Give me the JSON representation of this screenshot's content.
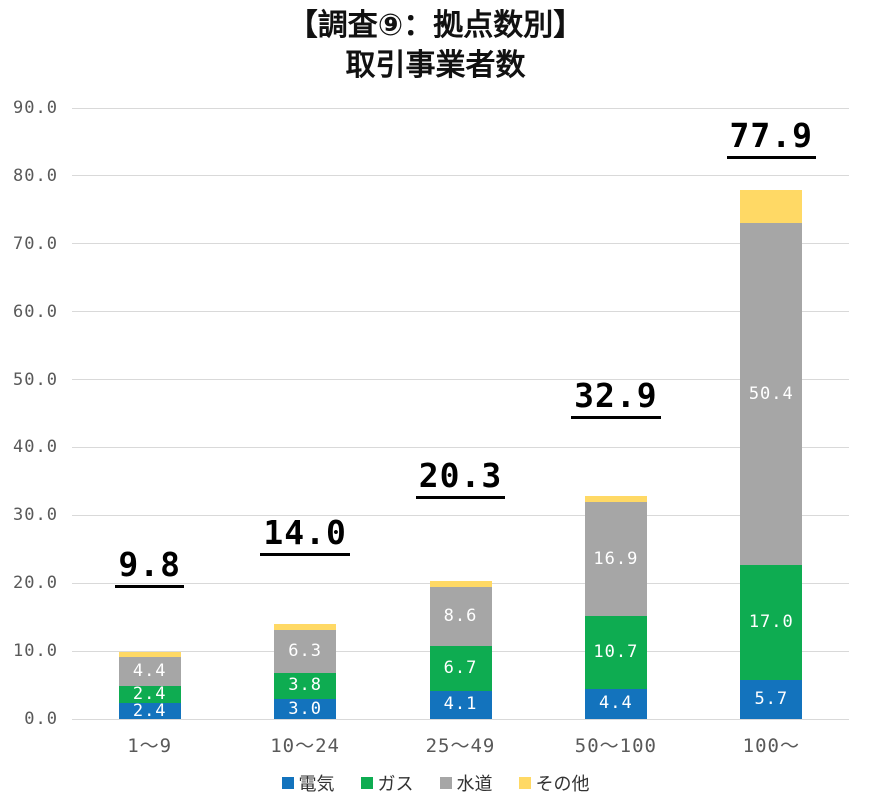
{
  "title": {
    "line1": "【調査⑨：拠点数別】",
    "line2": "取引事業者数"
  },
  "chart_data": {
    "type": "bar",
    "stacked": true,
    "title": "【調査⑨：拠点数別】 取引事業者数",
    "categories": [
      "1〜9",
      "10〜24",
      "25〜49",
      "50〜100",
      "100〜"
    ],
    "series": [
      {
        "name": "電気",
        "color": "#1373BD",
        "values": [
          2.4,
          3.0,
          4.1,
          4.4,
          5.7
        ],
        "labels_shown": true
      },
      {
        "name": "ガス",
        "color": "#0EAC51",
        "values": [
          2.4,
          3.8,
          6.7,
          10.7,
          17.0
        ],
        "labels_shown": true
      },
      {
        "name": "水道",
        "color": "#A6A6A6",
        "values": [
          4.4,
          6.3,
          8.6,
          16.9,
          50.4
        ],
        "labels_shown": true
      },
      {
        "name": "その他",
        "color": "#FFD965",
        "values": [
          0.6,
          0.9,
          0.9,
          0.9,
          4.8
        ],
        "labels_shown": false
      }
    ],
    "totals": [
      "9.8",
      "14.0",
      "20.3",
      "32.9",
      "77.9"
    ],
    "xlabel": "",
    "ylabel": "",
    "ylim": [
      0,
      90
    ],
    "yticks": [
      "0.0",
      "10.0",
      "20.0",
      "30.0",
      "40.0",
      "50.0",
      "60.0",
      "70.0",
      "80.0",
      "90.0"
    ],
    "grid": true,
    "legend_position": "bottom"
  },
  "legend": {
    "items": [
      {
        "label": "電気",
        "color": "#1373BD"
      },
      {
        "label": "ガス",
        "color": "#0EAC51"
      },
      {
        "label": "水道",
        "color": "#A6A6A6"
      },
      {
        "label": "その他",
        "color": "#FFD965"
      }
    ]
  },
  "colors": {
    "grid": "#D9D9D9",
    "axis_text": "#595959",
    "segment_label_text": "#FFFFFF",
    "total_label_text": "#000000",
    "title_text": "#111111"
  }
}
